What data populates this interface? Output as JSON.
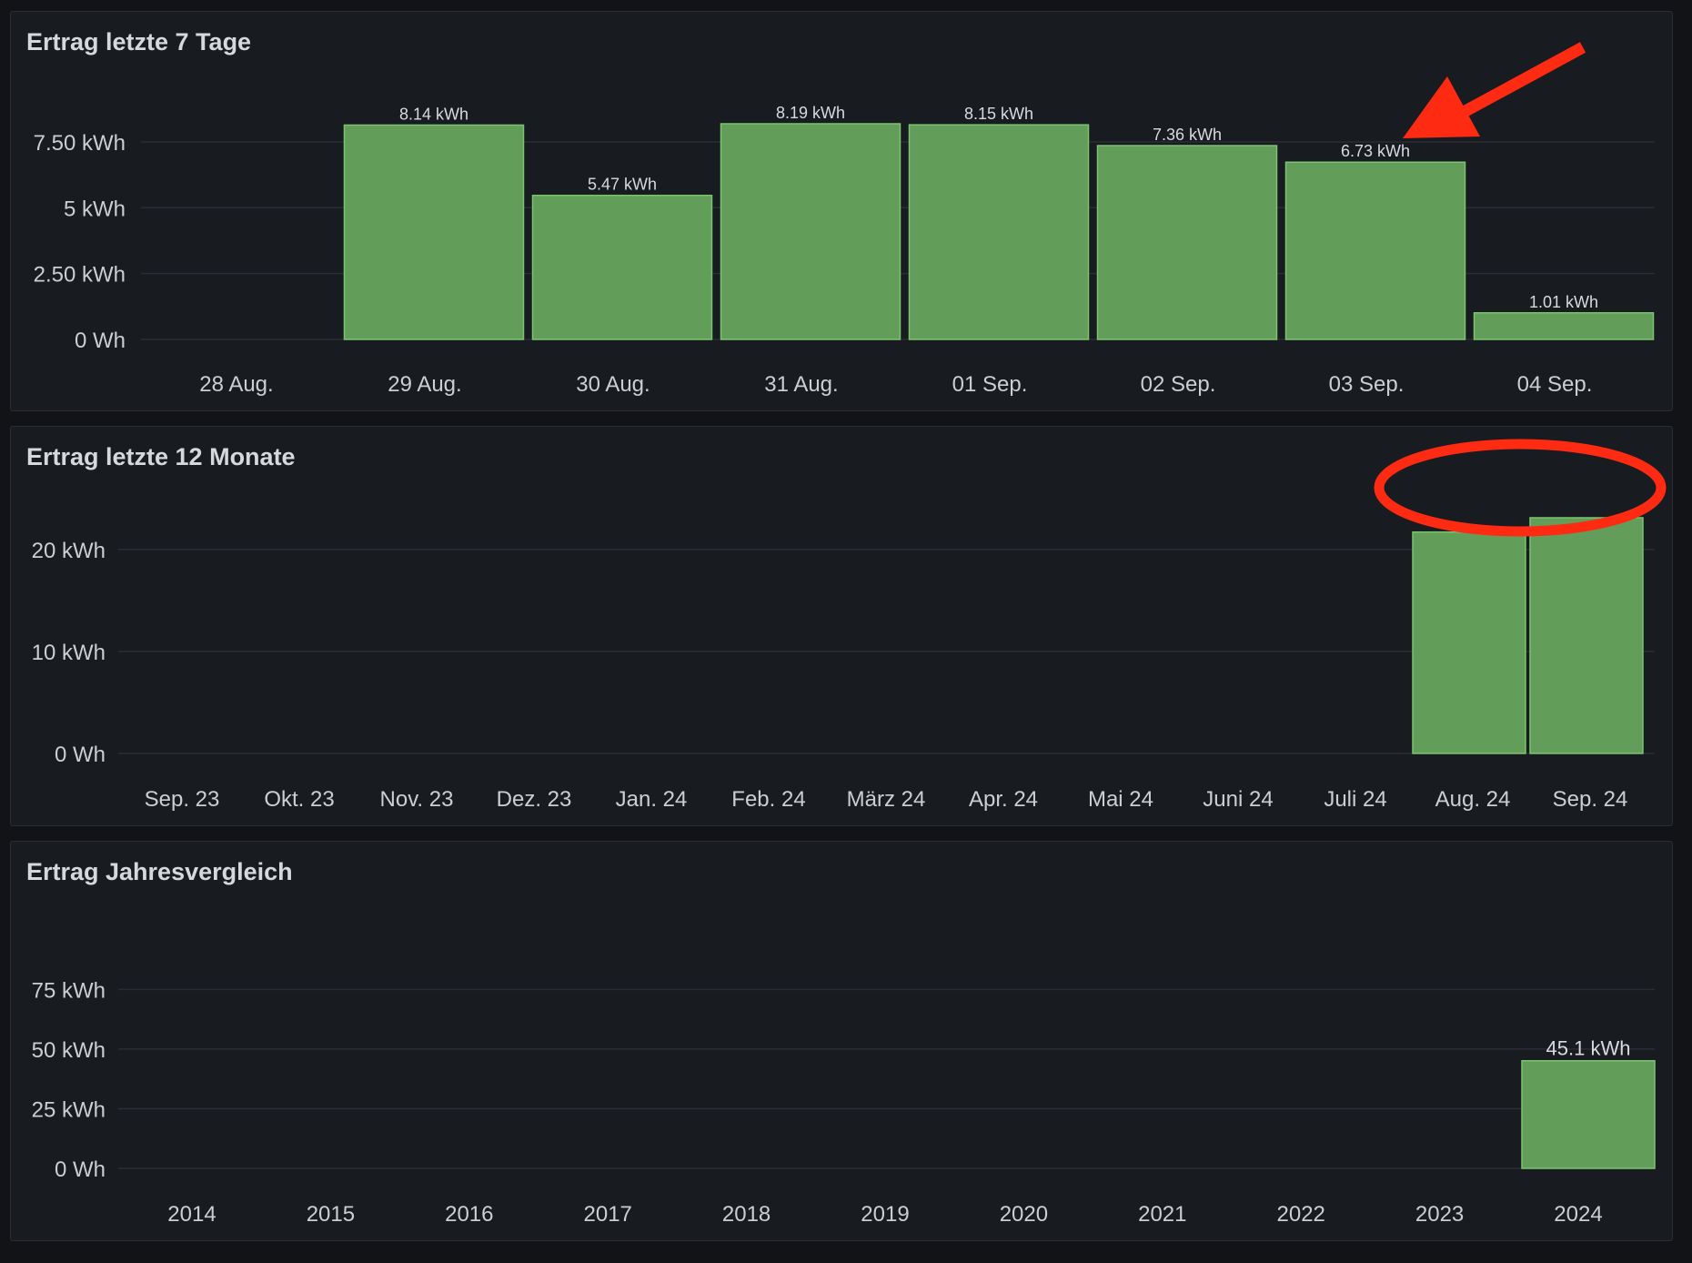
{
  "colors": {
    "bar": "#629d59",
    "bar_border": "#7bc470",
    "annotation": "#ff2a12"
  },
  "panels": [
    {
      "title": "Ertrag letzte 7 Tage"
    },
    {
      "title": "Ertrag letzte 12 Monate"
    },
    {
      "title": "Ertrag Jahresvergleich"
    }
  ],
  "chart_data": [
    {
      "type": "bar",
      "title": "Ertrag letzte 7 Tage",
      "categories": [
        "28 Aug.",
        "29 Aug.",
        "30 Aug.",
        "31 Aug.",
        "01 Sep.",
        "02 Sep.",
        "03 Sep.",
        "04 Sep."
      ],
      "values": [
        0,
        8.14,
        5.47,
        8.19,
        8.15,
        7.36,
        6.73,
        1.01
      ],
      "value_labels": [
        "",
        "8.14 kWh",
        "5.47 kWh",
        "8.19 kWh",
        "8.15 kWh",
        "7.36 kWh",
        "6.73 kWh",
        "1.01 kWh"
      ],
      "unit": "kWh",
      "ylim": [
        0,
        8.19
      ],
      "yticks": [
        0,
        2.5,
        5,
        7.5
      ],
      "ytick_labels": [
        "0 Wh",
        "2.50 kWh",
        "5 kWh",
        "7.50 kWh"
      ],
      "grid": true
    },
    {
      "type": "bar",
      "title": "Ertrag letzte 12 Monate",
      "categories": [
        "Sep. 23",
        "Okt. 23",
        "Nov. 23",
        "Dez. 23",
        "Jan. 24",
        "Feb. 24",
        "März 24",
        "Apr. 24",
        "Mai 24",
        "Juni 24",
        "Juli 24",
        "Aug. 24",
        "Sep. 24"
      ],
      "values": [
        0,
        0,
        0,
        0,
        0,
        0,
        0,
        0,
        0,
        0,
        0,
        21.7,
        23.1
      ],
      "value_labels": [],
      "unit": "kWh",
      "ylim": [
        0,
        23.1
      ],
      "yticks": [
        0,
        10,
        20
      ],
      "ytick_labels": [
        "0 Wh",
        "10 kWh",
        "20 kWh"
      ],
      "grid": true
    },
    {
      "type": "bar",
      "title": "Ertrag Jahresvergleich",
      "categories": [
        "2014",
        "2015",
        "2016",
        "2017",
        "2018",
        "2019",
        "2020",
        "2021",
        "2022",
        "2023",
        "2024"
      ],
      "values": [
        0,
        0,
        0,
        0,
        0,
        0,
        0,
        0,
        0,
        0,
        45.1
      ],
      "value_labels": [
        "",
        "",
        "",
        "",
        "",
        "",
        "",
        "",
        "",
        "",
        "45.1 kWh"
      ],
      "unit": "kWh",
      "ylim": [
        0,
        90
      ],
      "yticks": [
        0,
        25,
        50,
        75
      ],
      "ytick_labels": [
        "0 Wh",
        "25 kWh",
        "50 kWh",
        "75 kWh"
      ],
      "grid": true
    }
  ],
  "annotations": {
    "arrow": "red-arrow",
    "ellipse": "red-ellipse"
  }
}
